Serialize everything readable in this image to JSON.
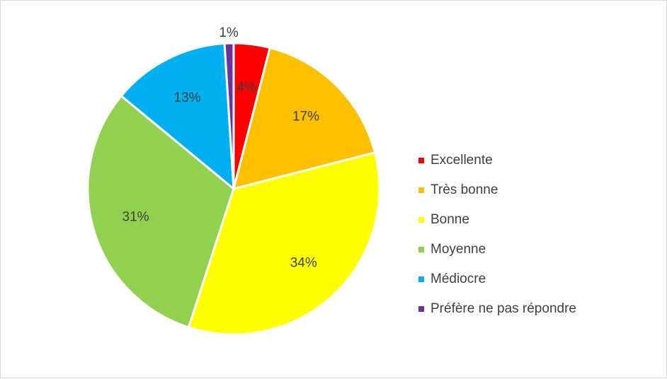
{
  "chart_data": {
    "type": "pie",
    "title": "",
    "categories": [
      "Excellente",
      "Très bonne",
      "Bonne",
      "Moyenne",
      "Médiocre",
      "Préfère ne pas répondre"
    ],
    "values": [
      4,
      17,
      34,
      31,
      13,
      1
    ],
    "labels": [
      "4%",
      "17%",
      "34%",
      "31%",
      "13%",
      "1%"
    ],
    "colors": [
      "#ff0000",
      "#ffc000",
      "#ffff00",
      "#92d050",
      "#00b0f0",
      "#7030a0"
    ],
    "legend_position": "right",
    "start_angle_deg": 0,
    "direction": "clockwise"
  }
}
